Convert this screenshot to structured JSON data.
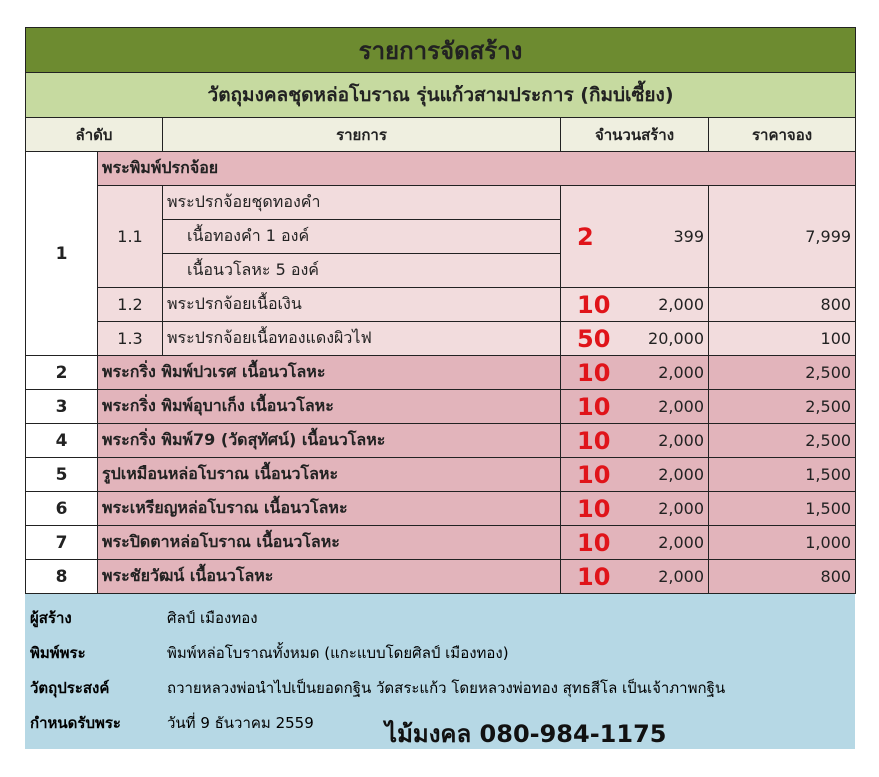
{
  "title": "รายการจัดสร้าง",
  "subtitle": "วัตถุมงคลชุดหล่อโบราณ รุ่นแก้วสามประการ (กิมบ่เซี้ยง)",
  "headers": {
    "no": "ลำดับ",
    "item": "รายการ",
    "qty": "จำนวนสร้าง",
    "price": "ราคาจอง"
  },
  "group1": {
    "no": "1",
    "name": "พระพิมพ์ปรกจ้อย",
    "sub": [
      {
        "no": "1.1",
        "lines": [
          "พระปรกจ้อยชุดทองคำ",
          "เนื้อทองคำ 1 องค์",
          "เนื้อนวโลหะ 5 องค์"
        ],
        "highlight": "2",
        "qty": "399",
        "price": "7,999"
      },
      {
        "no": "1.2",
        "lines": [
          "พระปรกจ้อยเนื้อเงิน"
        ],
        "highlight": "10",
        "qty": "2,000",
        "price": "800"
      },
      {
        "no": "1.3",
        "lines": [
          "พระปรกจ้อยเนื้อทองแดงผิวไฟ"
        ],
        "highlight": "50",
        "qty": "20,000",
        "price": "100"
      }
    ]
  },
  "rows": [
    {
      "no": "2",
      "name": "พระกริ่ง พิมพ์ปวเรศ เนื้อนวโลหะ",
      "highlight": "10",
      "qty": "2,000",
      "price": "2,500"
    },
    {
      "no": "3",
      "name": "พระกริ่ง พิมพ์อุบาเก็ง เนื้อนวโลหะ",
      "highlight": "10",
      "qty": "2,000",
      "price": "2,500"
    },
    {
      "no": "4",
      "name": "พระกริ่ง พิมพ์79 (วัดสุทัศน์) เนื้อนวโลหะ",
      "highlight": "10",
      "qty": "2,000",
      "price": "2,500"
    },
    {
      "no": "5",
      "name": "รูปเหมือนหล่อโบราณ เนื้อนวโลหะ",
      "highlight": "10",
      "qty": "2,000",
      "price": "1,500"
    },
    {
      "no": "6",
      "name": "พระเหรียญหล่อโบราณ เนื้อนวโลหะ",
      "highlight": "10",
      "qty": "2,000",
      "price": "1,500"
    },
    {
      "no": "7",
      "name": "พระปิดตาหล่อโบราณ เนื้อนวโลหะ",
      "highlight": "10",
      "qty": "2,000",
      "price": "1,000"
    },
    {
      "no": "8",
      "name": "พระชัยวัฒน์ เนื้อนวโลหะ",
      "highlight": "10",
      "qty": "2,000",
      "price": "800"
    }
  ],
  "footer": [
    {
      "label": "ผู้สร้าง",
      "value": "ศิลป์ เมืองทอง"
    },
    {
      "label": "พิมพ์พระ",
      "value": "พิมพ์หล่อโบราณทั้งหมด (แกะแบบโดยศิลป์ เมืองทอง)"
    },
    {
      "label": "วัตถุประสงค์",
      "value": "ถวายหลวงพ่อนำไปเป็นยอดกฐิน วัดสระแก้ว โดยหลวงพ่อทอง สุทธสีโล เป็นเจ้าภาพกฐิน"
    },
    {
      "label": "กำหนดรับพระ",
      "value": "วันที่ 9 ธันวาคม 2559"
    }
  ],
  "contact": "ไม้มงคล 080-984-1175",
  "colors": {
    "title_bg": "#6d8b30",
    "subtitle_bg": "#c6daa0",
    "row_bg": "#e2b4bb",
    "highlight": "#e0141a",
    "footer_bg": "#b6d8e5"
  }
}
